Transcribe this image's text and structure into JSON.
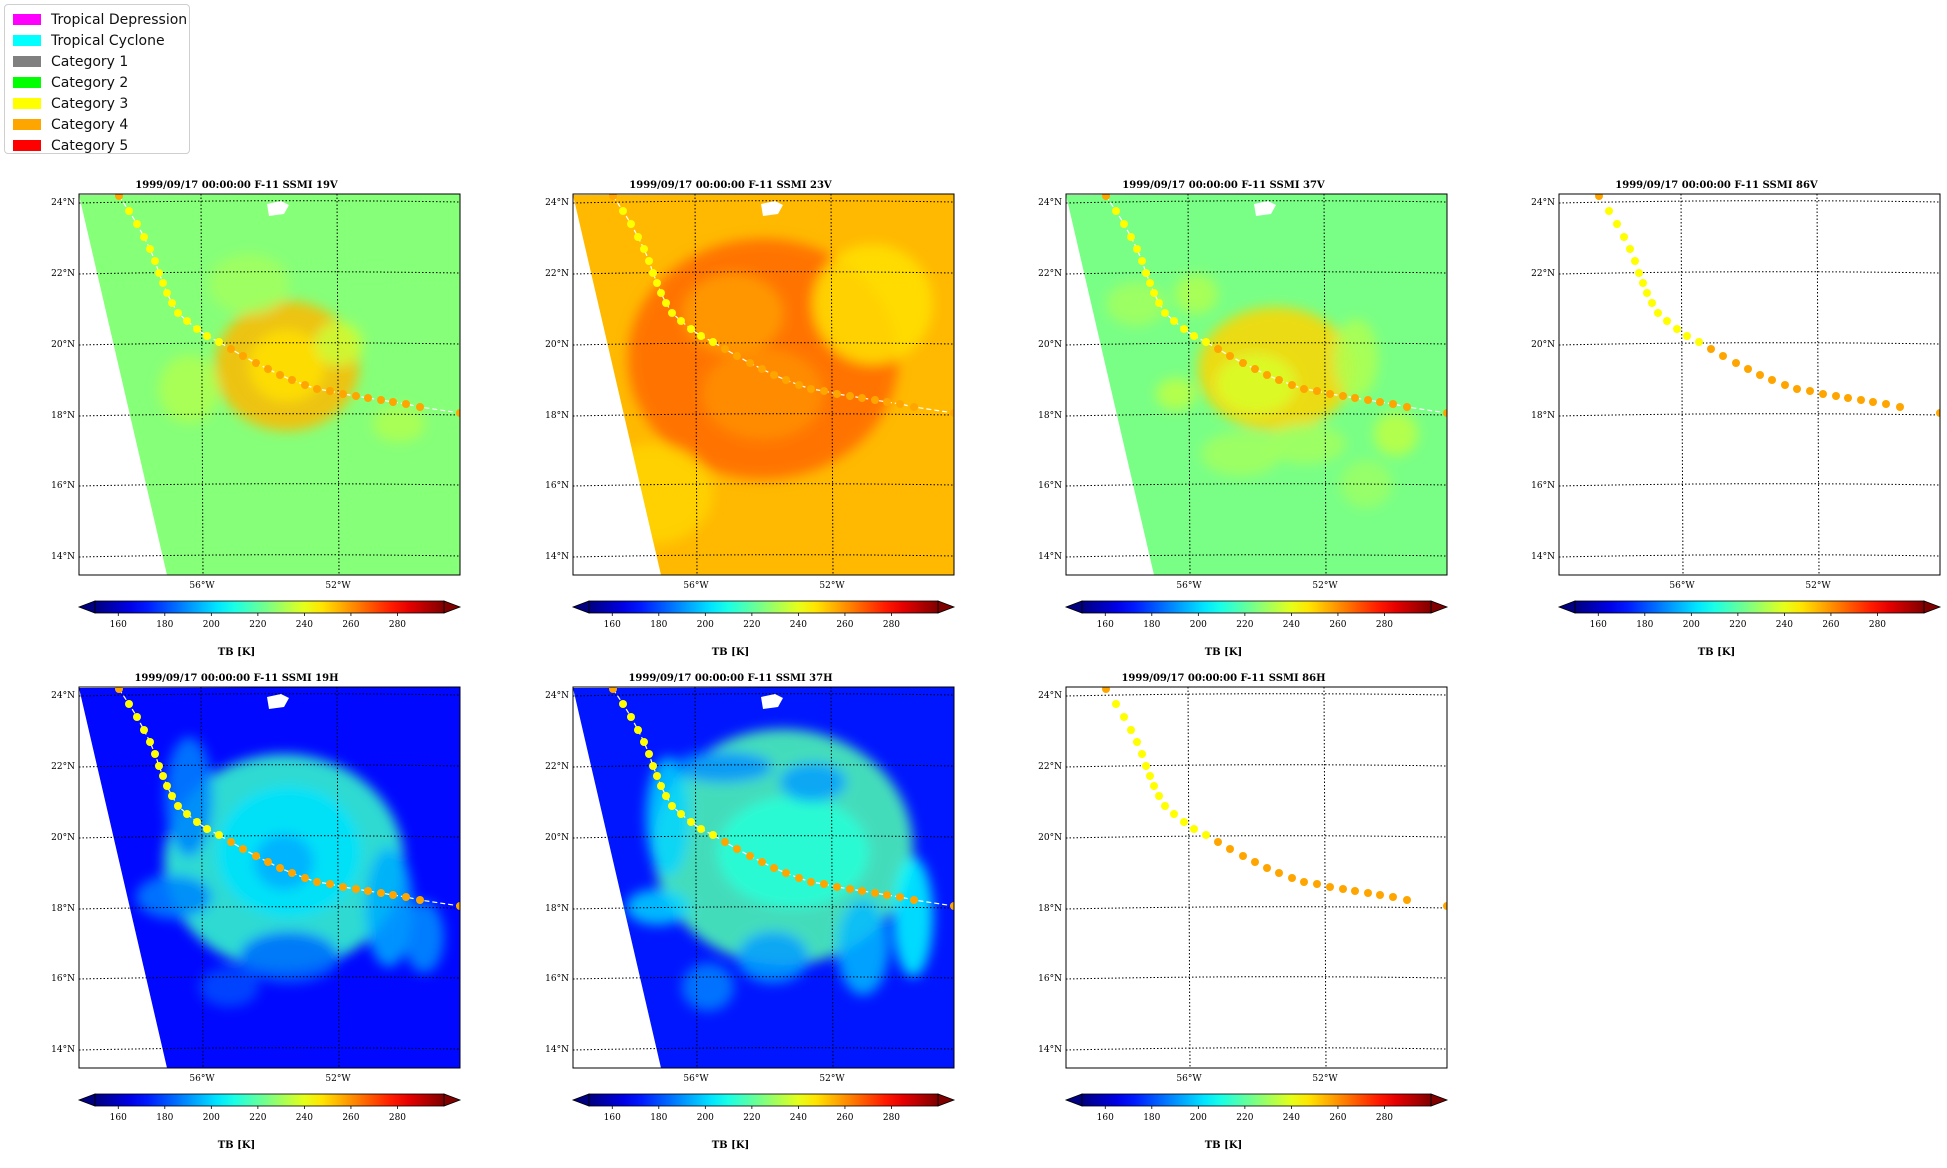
{
  "legend": {
    "items": [
      {
        "label": "Tropical Depression",
        "color": "#ff00ff"
      },
      {
        "label": "Tropical Cyclone",
        "color": "#00ffff"
      },
      {
        "label": "Category 1",
        "color": "#808080"
      },
      {
        "label": "Category 2",
        "color": "#00ff00"
      },
      {
        "label": "Category 3",
        "color": "#ffff00"
      },
      {
        "label": "Category 4",
        "color": "#ffa500"
      },
      {
        "label": "Category 5",
        "color": "#ff0000"
      }
    ]
  },
  "map_axes": {
    "lat_labels": [
      "24°N",
      "22°N",
      "20°N",
      "18°N",
      "16°N",
      "14°N"
    ],
    "lon_labels": [
      "56°W",
      "52°W"
    ]
  },
  "colorbar": {
    "ticks": [
      "160",
      "180",
      "200",
      "220",
      "240",
      "260",
      "280"
    ],
    "label": "TB [K]",
    "range": [
      150,
      300
    ],
    "colormap": "jet"
  },
  "track": {
    "points": [
      {
        "cat": "Category 4",
        "color": "#ffa500"
      },
      {
        "cat": "Category 3",
        "color": "#ffff00"
      },
      {
        "cat": "Category 3",
        "color": "#ffff00"
      },
      {
        "cat": "Category 3",
        "color": "#ffff00"
      },
      {
        "cat": "Category 3",
        "color": "#ffff00"
      },
      {
        "cat": "Category 3",
        "color": "#ffff00"
      },
      {
        "cat": "Category 3",
        "color": "#ffff00"
      },
      {
        "cat": "Category 3",
        "color": "#ffff00"
      },
      {
        "cat": "Category 3",
        "color": "#ffff00"
      },
      {
        "cat": "Category 3",
        "color": "#ffff00"
      },
      {
        "cat": "Category 3",
        "color": "#ffff00"
      },
      {
        "cat": "Category 3",
        "color": "#ffff00"
      },
      {
        "cat": "Category 3",
        "color": "#ffff00"
      },
      {
        "cat": "Category 3",
        "color": "#ffff00"
      },
      {
        "cat": "Category 3",
        "color": "#ffff00"
      },
      {
        "cat": "Category 4",
        "color": "#ffa500"
      },
      {
        "cat": "Category 4",
        "color": "#ffa500"
      },
      {
        "cat": "Category 4",
        "color": "#ffa500"
      },
      {
        "cat": "Category 4",
        "color": "#ffa500"
      },
      {
        "cat": "Category 4",
        "color": "#ffa500"
      },
      {
        "cat": "Category 4",
        "color": "#ffa500"
      },
      {
        "cat": "Category 4",
        "color": "#ffa500"
      },
      {
        "cat": "Category 4",
        "color": "#ffa500"
      },
      {
        "cat": "Category 4",
        "color": "#ffa500"
      },
      {
        "cat": "Category 4",
        "color": "#ffa500"
      },
      {
        "cat": "Category 4",
        "color": "#ffa500"
      },
      {
        "cat": "Category 4",
        "color": "#ffa500"
      },
      {
        "cat": "Category 4",
        "color": "#ffa500"
      },
      {
        "cat": "Category 4",
        "color": "#ffa500"
      },
      {
        "cat": "Category 4",
        "color": "#ffa500"
      },
      {
        "cat": "Category 4",
        "color": "#ffa500"
      },
      {
        "cat": "Category 4",
        "color": "#ffa500"
      }
    ]
  },
  "panels": [
    {
      "title": "1999/09/17 00:00:00  F-11 SSMI 19V",
      "field": "19v"
    },
    {
      "title": "1999/09/17 00:00:00  F-11 SSMI 23V",
      "field": "23v"
    },
    {
      "title": "1999/09/17 00:00:00  F-11 SSMI 37V",
      "field": "37v"
    },
    {
      "title": "1999/09/17 00:00:00  F-11 SSMI 86V",
      "field": "empty"
    },
    {
      "title": "1999/09/17 00:00:00  F-11 SSMI 19H",
      "field": "19h"
    },
    {
      "title": "1999/09/17 00:00:00  F-11 SSMI 37H",
      "field": "37h"
    },
    {
      "title": "1999/09/17 00:00:00  F-11 SSMI 86H",
      "field": "empty"
    }
  ]
}
